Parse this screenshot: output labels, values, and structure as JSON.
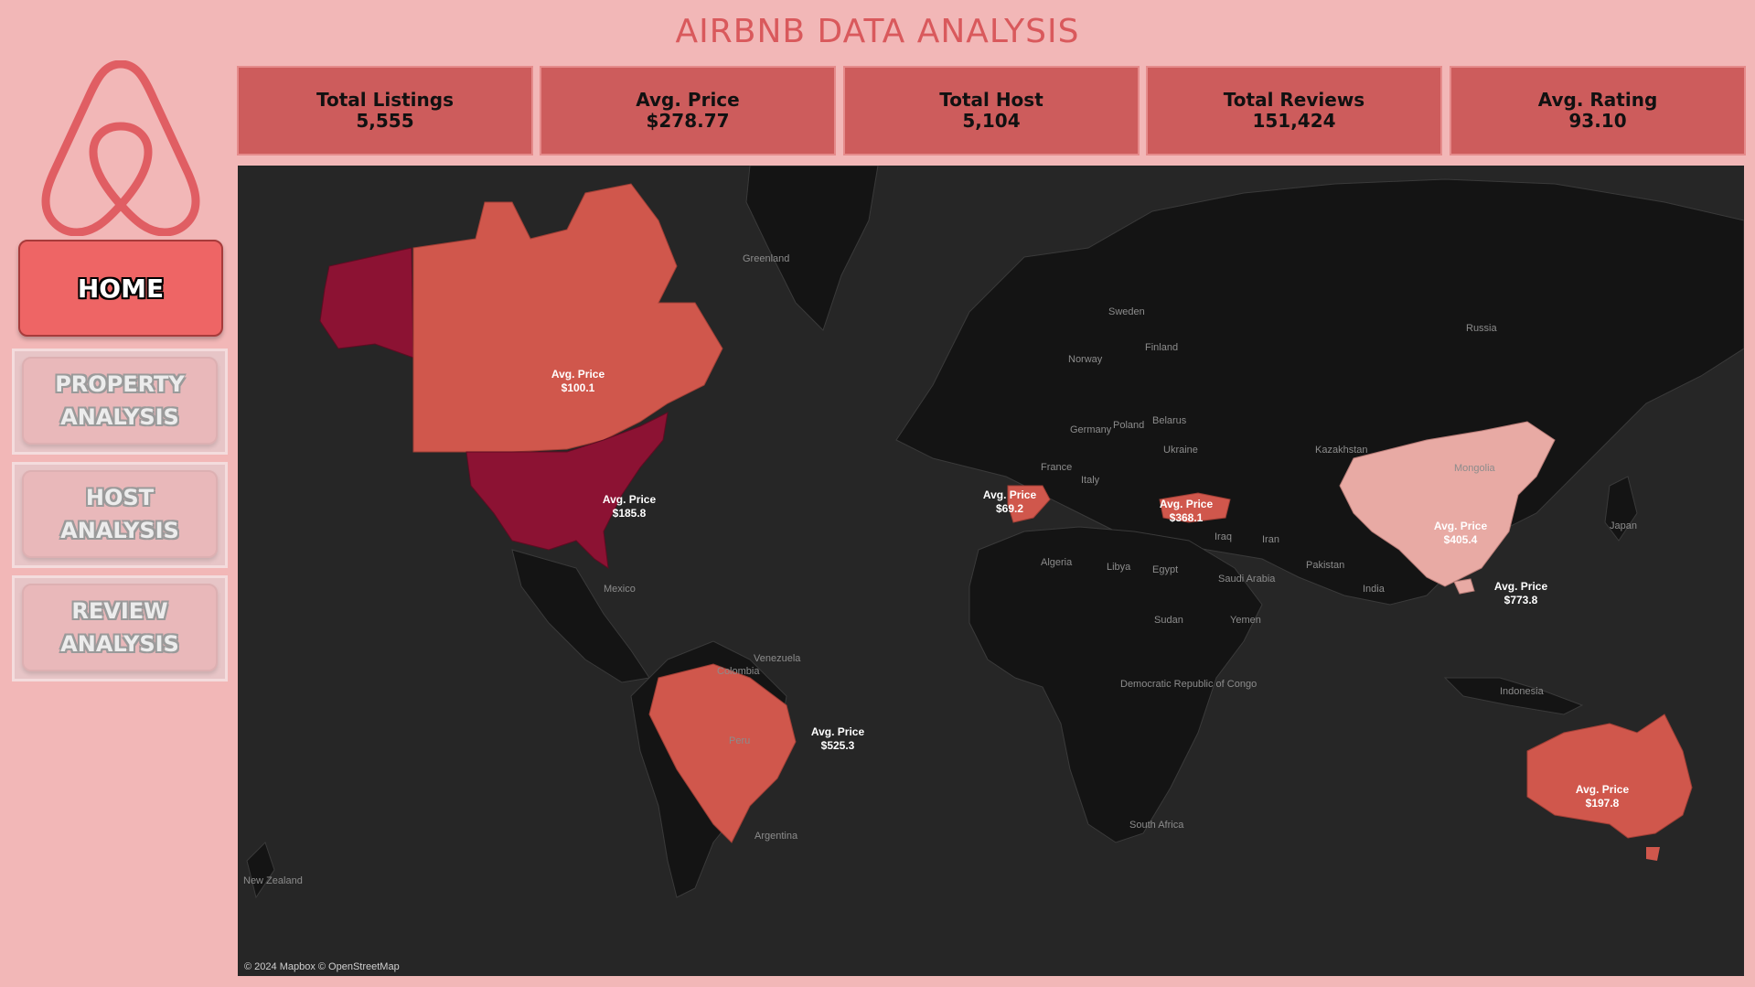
{
  "title": "AIRBNB DATA ANALYSIS",
  "nav": {
    "home": "HOME",
    "property": "PROPERTY ANALYSIS",
    "host": "HOST ANALYSIS",
    "review": "REVIEW ANALYSIS"
  },
  "kpis": [
    {
      "label": "Total Listings",
      "value": "5,555"
    },
    {
      "label": "Avg. Price",
      "value": "$278.77"
    },
    {
      "label": "Total Host",
      "value": "5,104"
    },
    {
      "label": "Total Reviews",
      "value": "151,424"
    },
    {
      "label": "Avg. Rating",
      "value": "93.10"
    }
  ],
  "map": {
    "attribution": "© 2024 Mapbox © OpenStreetMap",
    "country_labels": [
      "Greenland",
      "Sweden",
      "Finland",
      "Norway",
      "Russia",
      "Belarus",
      "Poland",
      "Germany",
      "Ukraine",
      "France",
      "Italy",
      "Kazakhstan",
      "Mongolia",
      "Algeria",
      "Libya",
      "Egypt",
      "Iraq",
      "Iran",
      "Saudi Arabia",
      "Pakistan",
      "India",
      "Japan",
      "Sudan",
      "Yemen",
      "Democratic Republic of Congo",
      "Indonesia",
      "Mexico",
      "Venezuela",
      "Colombia",
      "Peru",
      "Argentina",
      "South Africa",
      "New Zealand"
    ],
    "price_labels": [
      {
        "country": "Canada",
        "label": "Avg. Price",
        "value": "$100.1"
      },
      {
        "country": "United States",
        "label": "Avg. Price",
        "value": "$185.8"
      },
      {
        "country": "Spain",
        "label": "Avg. Price",
        "value": "$69.2"
      },
      {
        "country": "Turkey",
        "label": "Avg. Price",
        "value": "$368.1"
      },
      {
        "country": "China",
        "label": "Avg. Price",
        "value": "$405.4"
      },
      {
        "country": "Hong Kong",
        "label": "Avg. Price",
        "value": "$773.8"
      },
      {
        "country": "Brazil",
        "label": "Avg. Price",
        "value": "$525.3"
      },
      {
        "country": "Australia",
        "label": "Avg. Price",
        "value": "$197.8"
      }
    ],
    "colors": {
      "ocean": "#262626",
      "land": "#141414",
      "mid": "#d0574c",
      "low": "#8c1233",
      "light": "#e8aaa4"
    }
  }
}
